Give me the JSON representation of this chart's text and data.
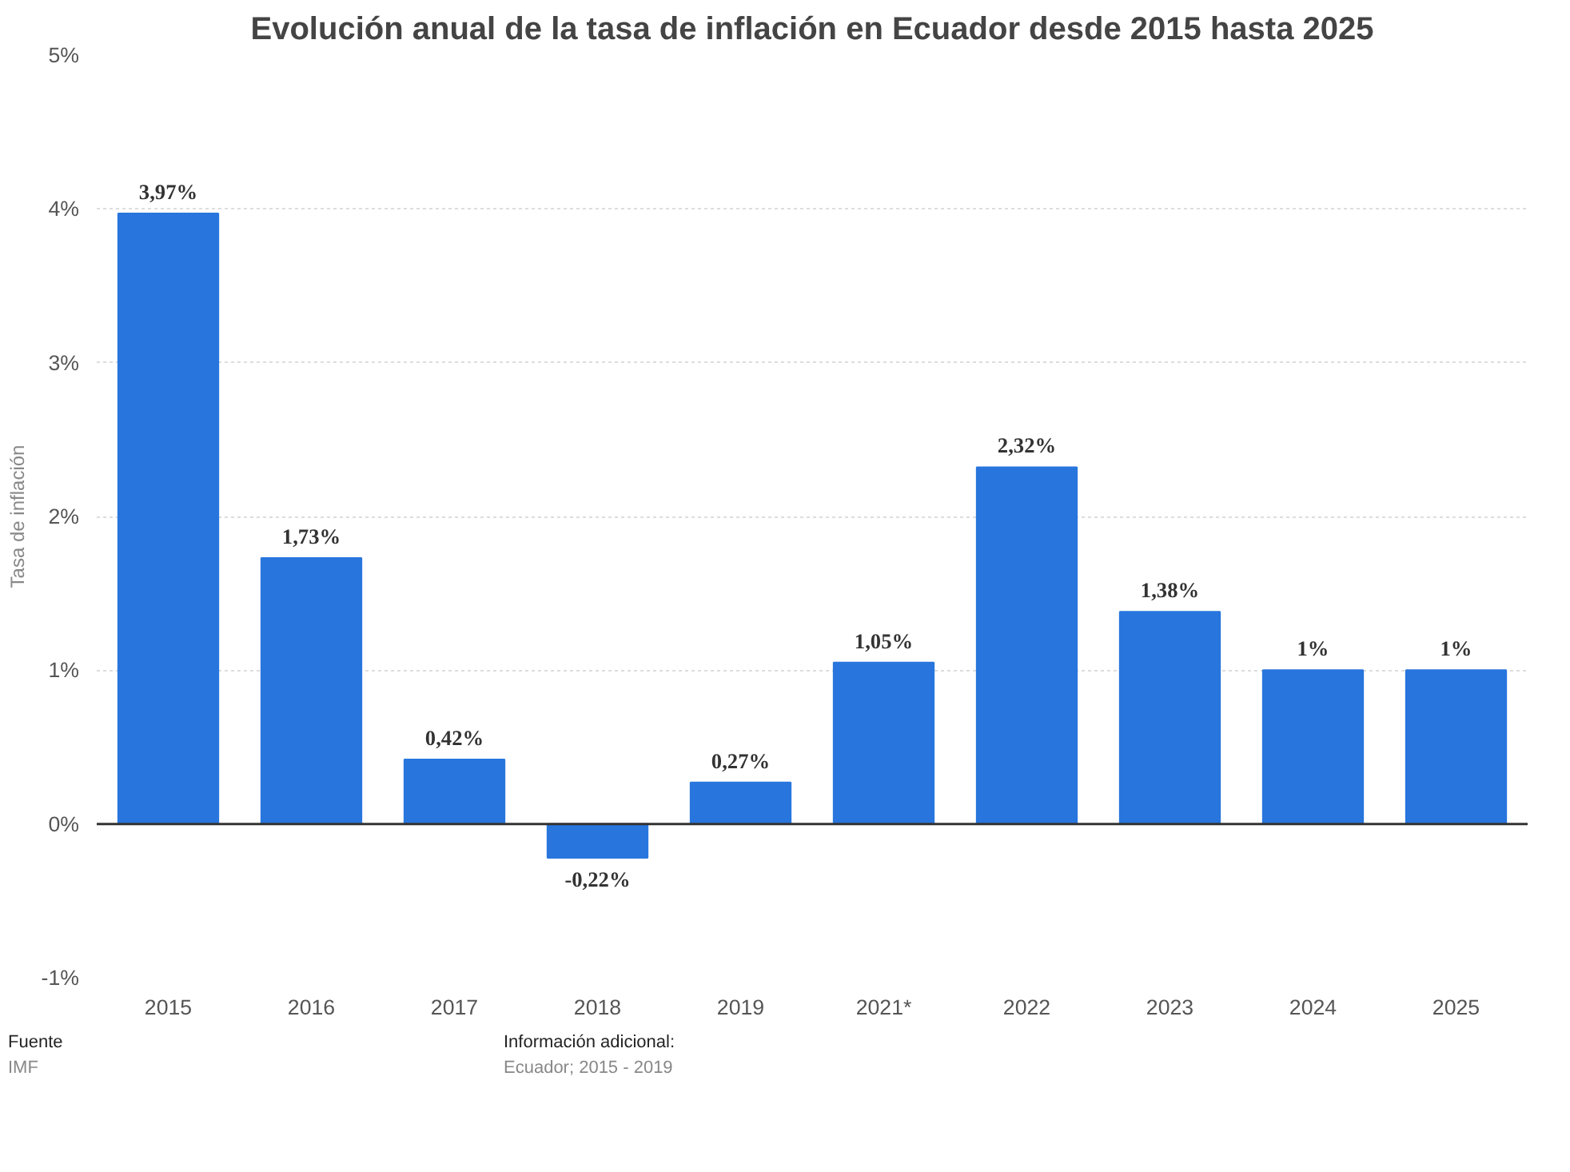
{
  "chart_data": {
    "type": "bar",
    "title": "Evolución anual de la tasa de inflación en Ecuador desde 2015 hasta 2025",
    "ylabel": "Tasa de inflación",
    "categories": [
      "2015",
      "2016",
      "2017",
      "2018",
      "2019",
      "2021*",
      "2022",
      "2023",
      "2024",
      "2025"
    ],
    "values": [
      3.97,
      1.73,
      0.42,
      -0.22,
      0.27,
      1.05,
      2.32,
      1.38,
      1,
      1
    ],
    "value_labels": [
      "3,97%",
      "1,73%",
      "0,42%",
      "-0,22%",
      "0,27%",
      "1,05%",
      "2,32%",
      "1,38%",
      "1%",
      "1%"
    ],
    "color": "#2876dd",
    "ylim": [
      -1,
      5
    ],
    "yticks": [
      {
        "value": -1,
        "label": "-1%"
      },
      {
        "value": 0,
        "label": "0%"
      },
      {
        "value": 1,
        "label": "1%"
      },
      {
        "value": 2,
        "label": "2%"
      },
      {
        "value": 3,
        "label": "3%"
      },
      {
        "value": 4,
        "label": "4%"
      },
      {
        "value": 5,
        "label": "5%"
      }
    ],
    "grid": "y",
    "annotations": [
      "Fuente",
      "IMF",
      "Información adicional:",
      "Ecuador; 2015 - 2019"
    ]
  }
}
